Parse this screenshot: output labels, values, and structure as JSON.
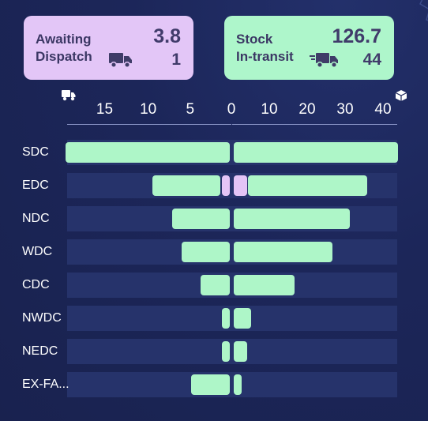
{
  "cards": {
    "dispatch": {
      "label_line1": "Awaiting",
      "label_line2": "Dispatch",
      "value_big": "3.8",
      "value_small": "1",
      "icon": "truck-icon",
      "color": "#e3c6f7"
    },
    "transit": {
      "label_line1": "Stock",
      "label_line2": "In-transit",
      "value_big": "126.7",
      "value_small": "44",
      "icon": "fast-truck-icon",
      "color": "#aef6cb"
    }
  },
  "chart_data": {
    "type": "bar",
    "orientation": "horizontal-diverging",
    "categories": [
      "SDC",
      "EDC",
      "NDC",
      "WDC",
      "CDC",
      "NWDC",
      "NEDC",
      "EX-FA..."
    ],
    "left_axis": {
      "icon": "truck-icon",
      "ticks": [
        "15",
        "10",
        "5",
        "0"
      ],
      "ticks_values": [
        15,
        10,
        5,
        0
      ],
      "range": [
        0,
        17
      ]
    },
    "right_axis": {
      "icon": "package-icon",
      "ticks": [
        "0",
        "10",
        "20",
        "30",
        "40"
      ],
      "ticks_values": [
        0,
        10,
        20,
        30,
        40
      ],
      "scale": "sqrt",
      "range": [
        0,
        44
      ]
    },
    "series": [
      {
        "side": "left",
        "color": "#aef6c8",
        "values": [
          17.0,
          8.0,
          6.0,
          5.0,
          3.0,
          0.2,
          0.2,
          4.0
        ]
      },
      {
        "side": "left-inner",
        "color": "#e4c4f6",
        "values": [
          0,
          0.8,
          0,
          0,
          0,
          0,
          0,
          0
        ]
      },
      {
        "side": "right-inner",
        "color": "#e4c4f6",
        "values": [
          0,
          1.0,
          0,
          0,
          0,
          0,
          0,
          0
        ]
      },
      {
        "side": "right",
        "color": "#aef6c8",
        "values": [
          44.0,
          29.0,
          22.0,
          16.0,
          6.0,
          0.5,
          0.3,
          0.1
        ]
      }
    ]
  }
}
